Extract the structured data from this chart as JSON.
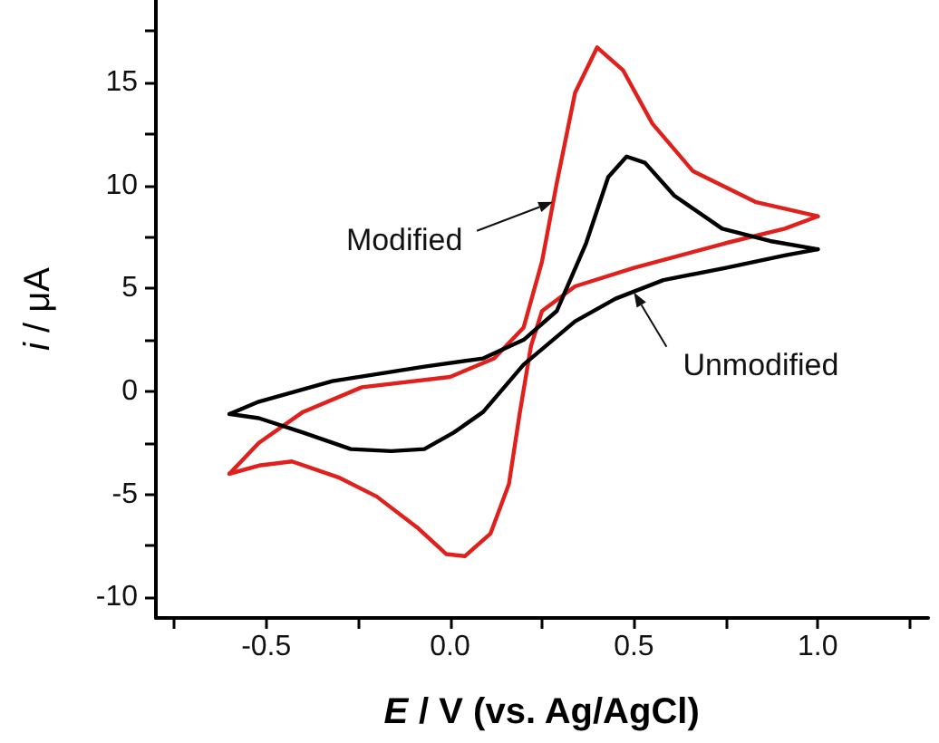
{
  "chart_data": {
    "type": "line",
    "xlabel": "E / V (vs. Ag/AgCl)",
    "ylabel": "i / μA",
    "xlim": [
      -0.8,
      1.3
    ],
    "ylim": [
      -11,
      19
    ],
    "xticks": [
      {
        "value": -0.75,
        "label": null
      },
      -0.5,
      {
        "value": -0.25,
        "label": null
      },
      {
        "value": 0,
        "label": "0.0"
      },
      {
        "value": 0.25,
        "label": null
      },
      0.5,
      {
        "value": 0.75,
        "label": null
      },
      {
        "value": 1,
        "label": "1.0"
      },
      {
        "value": 1.25,
        "label": null
      }
    ],
    "yticks": [
      -10,
      {
        "value": -7.5,
        "label": null
      },
      -5,
      {
        "value": -2.5,
        "label": null
      },
      0,
      {
        "value": 2.5,
        "label": null
      },
      5,
      {
        "value": 7.5,
        "label": null
      },
      10,
      {
        "value": 12.5,
        "label": null
      },
      15,
      {
        "value": 17.5,
        "label": null
      }
    ],
    "grid": false,
    "marker": "none",
    "line_style": "solid",
    "annotations": [
      {
        "text": "Modified",
        "x": 0.28,
        "y": 9.2
      },
      {
        "text": "Unmodified",
        "x": 0.5,
        "y": 4.8
      }
    ],
    "series": [
      {
        "color": "#e0201c",
        "x": [
          -0.6,
          -0.52,
          -0.4,
          -0.24,
          0,
          0.12,
          0.2,
          0.25,
          0.29,
          0.34,
          0.4,
          0.47,
          0.55,
          0.66,
          0.83,
          1.0
        ],
        "values": [
          -4.0,
          -2.5,
          -1.0,
          0.2,
          0.7,
          1.6,
          3.1,
          6.3,
          10.1,
          14.5,
          16.7,
          15.6,
          13,
          10.7,
          9.2,
          8.5
        ]
      },
      {
        "color": "#e0201c",
        "x": [
          1.0,
          0.91,
          0.75,
          0.5,
          0.34,
          0.25,
          0.22,
          0.19,
          0.16,
          0.11,
          0.04,
          -0.01,
          -0.09,
          -0.2,
          -0.3,
          -0.43,
          -0.52,
          -0.6
        ],
        "values": [
          8.5,
          7.9,
          7.2,
          6.0,
          5.1,
          3.9,
          2.2,
          -1.0,
          -4.5,
          -6.9,
          -8.0,
          -7.9,
          -6.6,
          -5.1,
          -4.2,
          -3.4,
          -3.6,
          -4.0
        ]
      },
      {
        "color": "#000000",
        "x": [
          -0.6,
          -0.52,
          -0.32,
          -0.07,
          0.09,
          0.2,
          0.29,
          0.37,
          0.43,
          0.48,
          0.53,
          0.61,
          0.74,
          0.87,
          1.0
        ],
        "values": [
          -1.1,
          -0.5,
          0.5,
          1.2,
          1.6,
          2.5,
          3.9,
          7.2,
          10.4,
          11.4,
          11.1,
          9.5,
          7.9,
          7.3,
          6.9
        ]
      },
      {
        "color": "#000000",
        "x": [
          1.0,
          0.91,
          0.75,
          0.58,
          0.45,
          0.34,
          0.2,
          0.09,
          0.01,
          -0.07,
          -0.16,
          -0.27,
          -0.4,
          -0.52,
          -0.6
        ],
        "values": [
          6.9,
          6.6,
          6.0,
          5.4,
          4.5,
          3.4,
          1.3,
          -1.0,
          -2.0,
          -2.8,
          -2.9,
          -2.8,
          -2.0,
          -1.3,
          -1.1
        ]
      }
    ]
  }
}
